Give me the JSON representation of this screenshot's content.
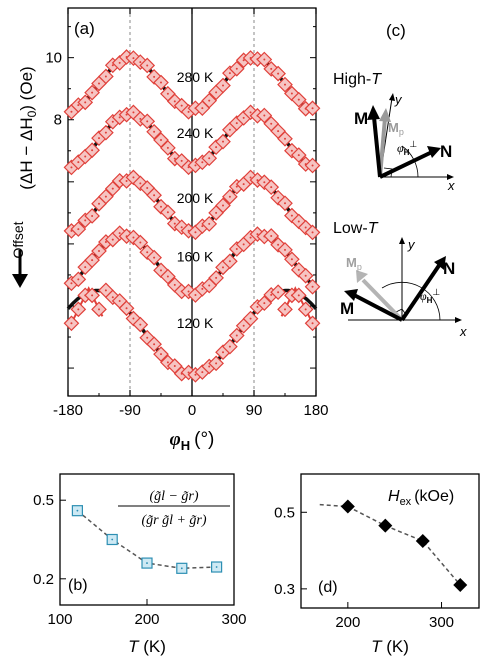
{
  "chart_data": [
    {
      "panel": "(a)",
      "type": "scatter",
      "xlabel_symbol": "φ",
      "xlabel_sub": "H",
      "xlabel_unit": "(°)",
      "ylabel": "(ΔH − ΔH",
      "ylabel_sub": "0",
      "ylabel_unit": ") (Oe)",
      "xlim": [
        -180,
        180
      ],
      "xticks": [
        "-180",
        "-90",
        "0",
        "90",
        "180"
      ],
      "yticks_labeled": [
        "10",
        "8"
      ],
      "offset_label": "Offset",
      "reference_lines_x": [
        -90,
        0,
        90
      ],
      "colors": {
        "marker_edge": "#e0403a",
        "marker_fill": "#f6c4c2",
        "fit": "#111111",
        "alt_fit": "#e0403a"
      },
      "series": [
        {
          "name": "280 K",
          "offset": 9.15,
          "amplitude": 0.85,
          "period": 180,
          "phase": 0
        },
        {
          "name": "240 K",
          "offset": 7.35,
          "amplitude": 0.85,
          "period": 180,
          "phase": 0
        },
        {
          "name": "200 K",
          "offset": 5.25,
          "amplitude": 0.85,
          "period": 180,
          "phase": 0
        },
        {
          "name": "160 K",
          "offset": 3.35,
          "amplitude": 0.95,
          "period": 200,
          "phase": 0
        },
        {
          "name": "120 K",
          "offset": 1.15,
          "amplitude": 1.35,
          "period": 275,
          "phase": 0
        }
      ]
    },
    {
      "panel": "(b)",
      "type": "line",
      "xlabel": "T",
      "xunit": "(K)",
      "xlim": [
        100,
        300
      ],
      "ylim": [
        0.1,
        0.6
      ],
      "xticks": [
        "100",
        "200",
        "300"
      ],
      "yticks": [
        "0.5",
        "0.2"
      ],
      "legend_num": "(g̃l − g̃r)",
      "legend_den": "(g̃r g̃l + g̃r)",
      "x": [
        120,
        160,
        200,
        240,
        280
      ],
      "y": [
        0.46,
        0.35,
        0.26,
        0.24,
        0.245
      ]
    },
    {
      "panel": "(d)",
      "type": "line",
      "xlabel": "T",
      "xunit": "(K)",
      "xlim": [
        150,
        340
      ],
      "ylim": [
        0.25,
        0.6
      ],
      "xticks": [
        "200",
        "300"
      ],
      "yticks": [
        "0.5",
        "0.3"
      ],
      "legend_symbol": "H",
      "legend_sub": "ex",
      "legend_unit": "(kOe)",
      "x": [
        200,
        240,
        280,
        320
      ],
      "y": [
        0.515,
        0.465,
        0.425,
        0.31
      ]
    }
  ],
  "panel_c": {
    "label": "(c)",
    "high_label": "High-",
    "high_var": "T",
    "low_label": "Low-",
    "low_var": "T",
    "vec_M": "M",
    "vec_Mp": "M",
    "vec_Mp_sub": "p",
    "vec_N": "N",
    "axis_x": "x",
    "axis_y": "y",
    "angle_symbol": "φ",
    "angle_sub": "H",
    "angle_sup": "⊥"
  }
}
